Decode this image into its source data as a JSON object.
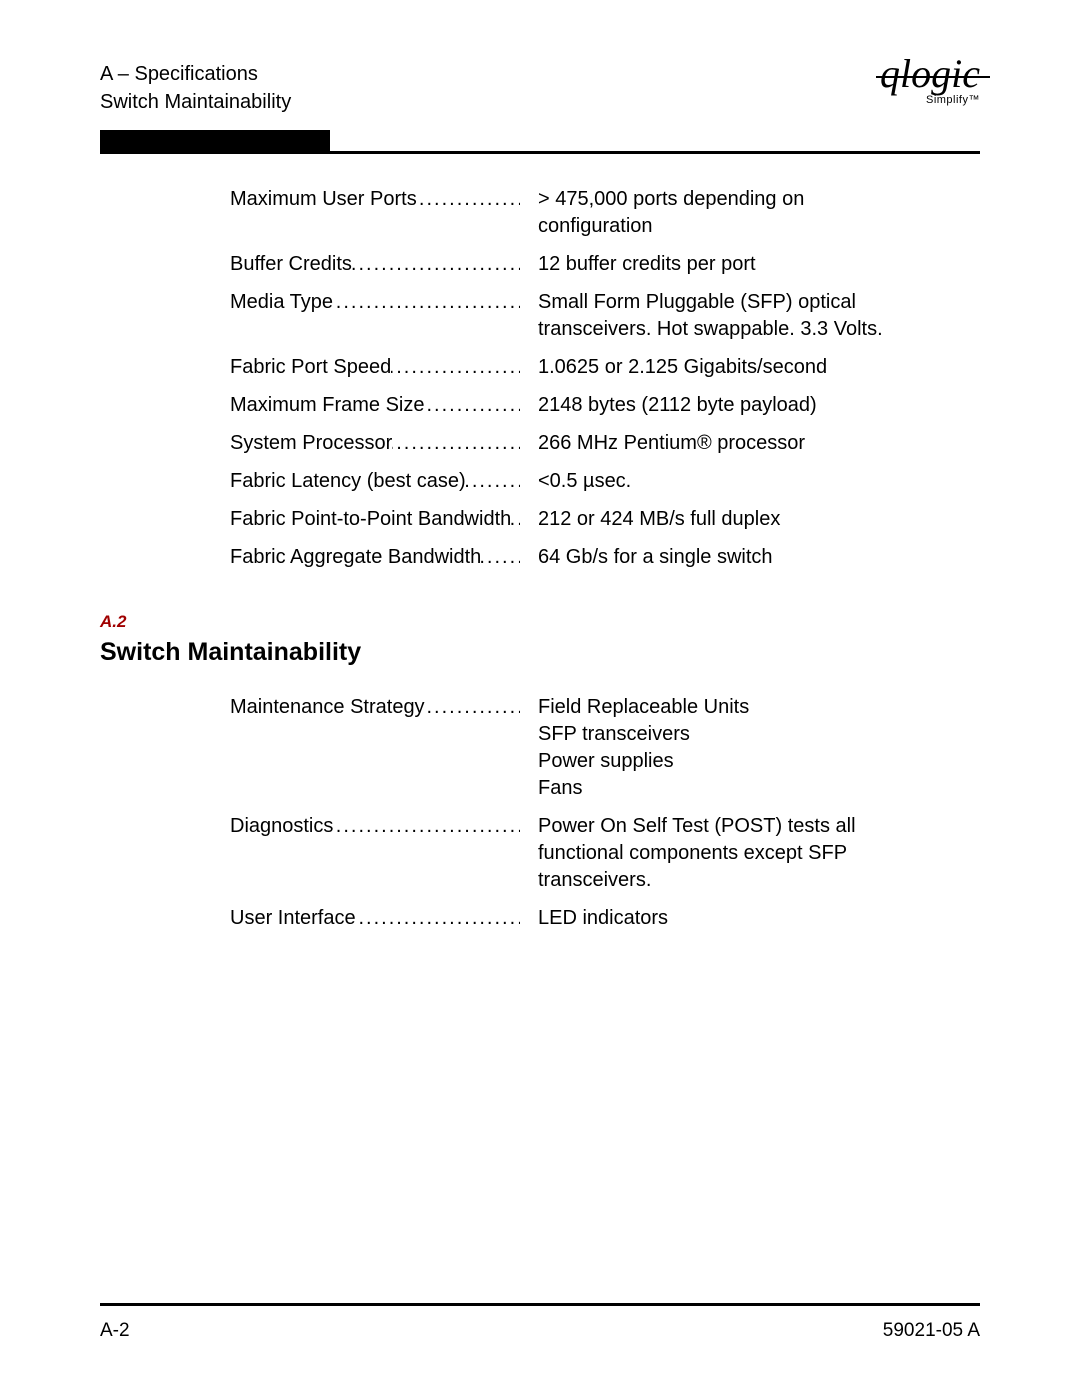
{
  "header": {
    "line1": "A – Specifications",
    "line2": "Switch Maintainability",
    "logo_brand": "qlogic",
    "logo_tagline": "Simplify™"
  },
  "colors": {
    "accent": "#a00000",
    "text": "#000000",
    "bg": "#ffffff"
  },
  "sections": [
    {
      "rows": [
        {
          "label": "Maximum User Ports",
          "value": "> 475,000 ports depending on\nconfiguration"
        },
        {
          "label": "Buffer Credits",
          "value": "12 buffer credits per port"
        },
        {
          "label": "Media Type",
          "value": "Small Form Pluggable (SFP) optical\ntransceivers. Hot swappable. 3.3 Volts."
        },
        {
          "label": "Fabric Port Speed",
          "value": "1.0625 or 2.125 Gigabits/second"
        },
        {
          "label": "Maximum Frame Size",
          "value": "2148 bytes (2112 byte payload)"
        },
        {
          "label": "System Processor",
          "value": "266 MHz Pentium® processor"
        },
        {
          "label": "Fabric Latency (best case)",
          "value": "<0.5 µsec."
        },
        {
          "label": "Fabric Point-to-Point Bandwidth",
          "value": "212 or 424 MB/s full duplex"
        },
        {
          "label": "Fabric Aggregate Bandwidth",
          "value": "64 Gb/s for a single switch"
        }
      ]
    },
    {
      "number": "A.2",
      "title": "Switch Maintainability",
      "rows": [
        {
          "label": "Maintenance Strategy",
          "value": "Field Replaceable Units\nSFP transceivers\nPower supplies\nFans"
        },
        {
          "label": "Diagnostics",
          "value": "Power On Self Test (POST) tests all\nfunctional components except SFP\ntransceivers."
        },
        {
          "label": "User Interface",
          "value": "LED indicators"
        }
      ]
    }
  ],
  "footer": {
    "left": "A-2",
    "right": "59021-05  A"
  }
}
